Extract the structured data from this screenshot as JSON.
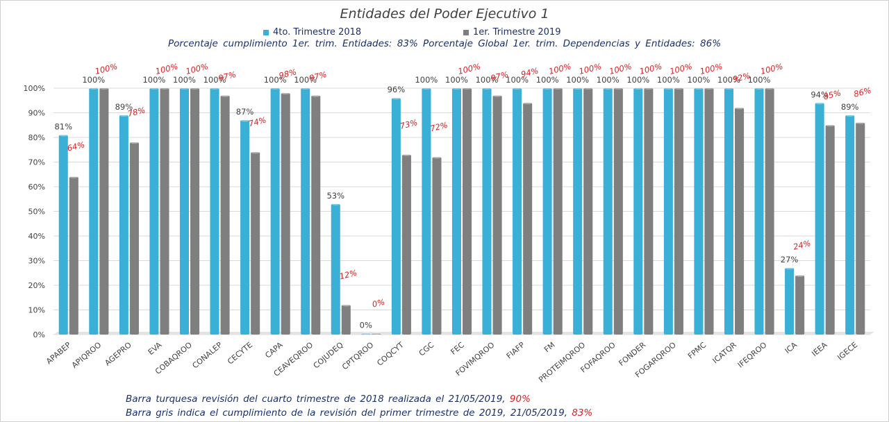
{
  "title": "Entidades del Poder Ejecutivo 1",
  "legend": [
    {
      "label": "4to. Trimestre 2018",
      "color": "#3bb0d6"
    },
    {
      "label": "1er. Trimestre 2019",
      "color": "#7f7f7f"
    }
  ],
  "summary": "Porcentaje cumplimiento  1er. trim. Entidades:  83%   Porcentaje Global  1er. trim. Dependencias  y Entidades:  86%",
  "notes": [
    {
      "text": "Barra turquesa revisión del cuarto trimestre de 2018 realizada el  21/05/2019,",
      "highlight": " 90%"
    },
    {
      "text": "Barra gris indica el cumplimiento  de la revisión del primer trimestre de 2019,  21/05/2019,",
      "highlight": "  83%"
    }
  ],
  "colors": {
    "series_a": "#3bb0d6",
    "series_b": "#7f7f7f",
    "label_a": "#404040",
    "label_b": "#d82020",
    "grid": "#d9d9d9",
    "axis_text": "#404040"
  },
  "chart_data": {
    "type": "bar",
    "title": "Entidades del Poder Ejecutivo 1",
    "categories": [
      "APABEP",
      "APIQROO",
      "AGEPRO",
      "EVA",
      "COBAQROO",
      "CONALEP",
      "CECYTE",
      "CAPA",
      "CEAVEQROO",
      "COJUDEQ",
      "CPTQROO",
      "COQCYT",
      "CGC",
      "FEC",
      "FOVIMQROO",
      "FIAFP",
      "FM",
      "PROTEIMQROO",
      "FOFAQROO",
      "FONDER",
      "FOGARQROO",
      "FPMC",
      "ICATQR",
      "IFEQROO",
      "ICA",
      "IEEA",
      "IGECE"
    ],
    "series": [
      {
        "name": "4to. Trimestre 2018",
        "values": [
          81,
          100,
          89,
          100,
          100,
          100,
          87,
          100,
          100,
          53,
          0,
          96,
          100,
          100,
          100,
          100,
          100,
          100,
          100,
          100,
          100,
          100,
          100,
          100,
          27,
          94,
          89
        ]
      },
      {
        "name": "1er. Trimestre 2019",
        "values": [
          64,
          100,
          78,
          100,
          100,
          97,
          74,
          98,
          97,
          12,
          0,
          73,
          72,
          100,
          97,
          94,
          100,
          100,
          100,
          100,
          100,
          100,
          92,
          100,
          24,
          85,
          86
        ]
      }
    ],
    "data_labels": {
      "series_a": [
        "81%",
        "100%",
        "89%",
        "100%",
        "100%",
        "100%",
        "87%",
        "100%",
        "100%",
        "53%",
        "0%",
        "96%",
        "100%",
        "100%",
        "100%",
        "100%",
        "100%",
        "100%",
        "100%",
        "100%",
        "100%",
        "100%",
        "100%",
        "100%",
        "27%",
        "94%",
        "89%"
      ],
      "series_b": [
        "64%",
        "100%",
        "78%",
        "100%",
        "100%",
        "97%",
        "74%",
        "98%",
        "97%",
        "12%",
        "0%",
        "73%",
        "72%",
        "100%",
        "97%",
        "94%",
        "100%",
        "100%",
        "100%",
        "100%",
        "100%",
        "100%",
        "92%",
        "100%",
        "24%",
        "85%",
        "86%"
      ]
    },
    "yticks": [
      "0%",
      "10%",
      "20%",
      "30%",
      "40%",
      "50%",
      "60%",
      "70%",
      "80%",
      "90%",
      "100%"
    ],
    "ylim": [
      0,
      100
    ],
    "grid": true,
    "legend_position": "top-center",
    "xlabel": "",
    "ylabel": ""
  }
}
